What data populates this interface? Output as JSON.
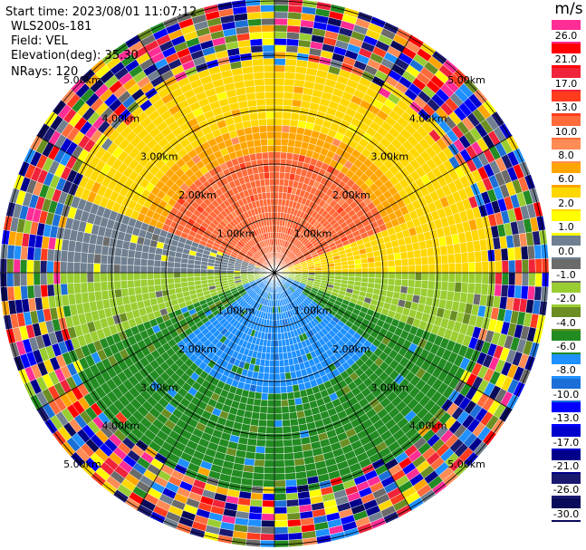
{
  "info": {
    "start_time": "Start time: 2023/08/01 11:07:12",
    "station": "WLS200s-181",
    "field": "Field: VEL",
    "elevation": "Elevation(deg): 35.30",
    "nrays": "NRays: 120"
  },
  "ring_labels": [
    "1.00km",
    "2.00km",
    "3.00km",
    "4.00km",
    "5.00km"
  ],
  "colorbar": {
    "unit": "m/s",
    "ticks": [
      "26.0",
      "21.0",
      "17.0",
      "13.0",
      "10.0",
      "8.0",
      "6.0",
      "2.0",
      "1.0",
      "0.0",
      "-1.0",
      "-2.0",
      "-4.0",
      "-6.0",
      "-8.0",
      "-10.0",
      "-13.0",
      "-17.0",
      "-21.0",
      "-26.0",
      "-30.0"
    ],
    "colors": [
      "#ff2d95",
      "#ff0000",
      "#f0233a",
      "#ff3c1e",
      "#ff6b3a",
      "#ff8c55",
      "#ffa500",
      "#ffd700",
      "#ffff00",
      "#708090",
      "#6b6b6b",
      "#9acd32",
      "#6b8e23",
      "#228b22",
      "#1e90ff",
      "#1c6fd6",
      "#0000ff",
      "#0000cd",
      "#00008b",
      "#191970",
      "#0a0a5a"
    ]
  }
}
